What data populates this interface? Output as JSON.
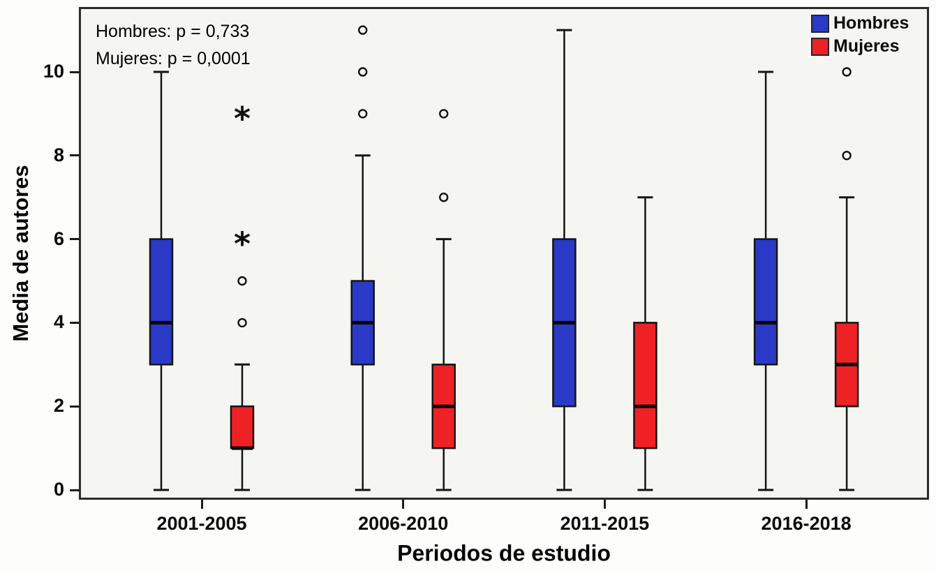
{
  "chart_data": {
    "type": "boxplot",
    "title": "",
    "xlabel": "Periodos de estudio",
    "ylabel": "Media de autores",
    "categories": [
      "2001-2005",
      "2006-2010",
      "2011-2015",
      "2016-2018"
    ],
    "yticks": [
      0,
      2,
      4,
      6,
      8,
      10
    ],
    "ylim": [
      -0.25,
      11.55
    ],
    "grid": false,
    "annotation": {
      "lines": [
        "Hombres: p = 0,733",
        "Mujeres: p = 0,0001"
      ]
    },
    "legend": {
      "position": "top-right",
      "entries": [
        {
          "label": "Hombres",
          "color": "#2a3ac6"
        },
        {
          "label": "Mujeres",
          "color": "#ee2125"
        }
      ]
    },
    "series": [
      {
        "name": "Hombres",
        "color": "#2a3ac6",
        "boxes": [
          {
            "category": "2001-2005",
            "whisker_low": 0,
            "q1": 3,
            "median": 4,
            "q3": 6,
            "whisker_high": 10,
            "outliers": [],
            "extremes": []
          },
          {
            "category": "2006-2010",
            "whisker_low": 0,
            "q1": 3,
            "median": 4,
            "q3": 5,
            "whisker_high": 8,
            "outliers": [
              9,
              10,
              11
            ],
            "extremes": []
          },
          {
            "category": "2011-2015",
            "whisker_low": 0,
            "q1": 2,
            "median": 4,
            "q3": 6,
            "whisker_high": 11,
            "outliers": [],
            "extremes": []
          },
          {
            "category": "2016-2018",
            "whisker_low": 0,
            "q1": 3,
            "median": 4,
            "q3": 6,
            "whisker_high": 10,
            "outliers": [],
            "extremes": []
          }
        ]
      },
      {
        "name": "Mujeres",
        "color": "#ee2125",
        "boxes": [
          {
            "category": "2001-2005",
            "whisker_low": 0,
            "q1": 1,
            "median": 1,
            "q3": 2,
            "whisker_high": 3,
            "outliers": [
              4,
              5
            ],
            "extremes": [
              6,
              9
            ]
          },
          {
            "category": "2006-2010",
            "whisker_low": 0,
            "q1": 1,
            "median": 2,
            "q3": 3,
            "whisker_high": 6,
            "outliers": [
              7,
              9
            ],
            "extremes": []
          },
          {
            "category": "2011-2015",
            "whisker_low": 0,
            "q1": 1,
            "median": 2,
            "q3": 4,
            "whisker_high": 7,
            "outliers": [],
            "extremes": []
          },
          {
            "category": "2016-2018",
            "whisker_low": 0,
            "q1": 2,
            "median": 3,
            "q3": 4,
            "whisker_high": 7,
            "outliers": [
              8,
              10
            ],
            "extremes": []
          }
        ]
      }
    ],
    "colors": {
      "box_border": "#141414",
      "whisker": "#141414",
      "median": "#050505",
      "outlier_stroke": "#111111",
      "frame": "#2b2b2b",
      "plot_background": "#f5f5f2",
      "outer_background": "#fdfdfc"
    }
  }
}
